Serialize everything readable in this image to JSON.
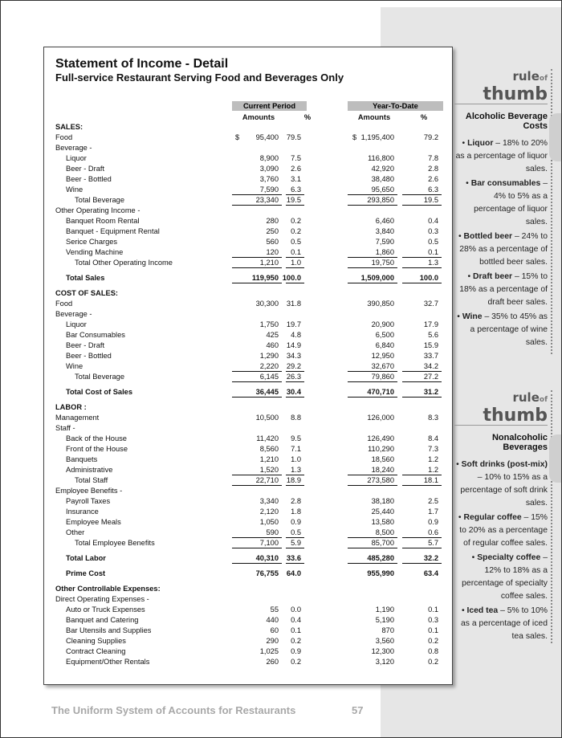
{
  "statement": {
    "title": "Statement of Income - Detail",
    "subtitle": "Full-service Restaurant Serving Food and Beverages Only",
    "groups": [
      "Current Period",
      "Year-To-Date"
    ],
    "columns": [
      "Amounts",
      "%",
      "Amounts",
      "%"
    ],
    "rows": [
      {
        "label": "SALES:"
      },
      {
        "label": "Food",
        "symbols": [
          "$",
          "$"
        ],
        "values": [
          "95,400",
          "79.5",
          "1,195,400",
          "79.2"
        ]
      },
      {
        "label": "Beverage -"
      },
      {
        "label": "Liquor",
        "values": [
          "8,900",
          "7.5",
          "116,800",
          "7.8"
        ]
      },
      {
        "label": "Beer - Draft",
        "values": [
          "3,090",
          "2.6",
          "42,920",
          "2.8"
        ]
      },
      {
        "label": "Beer - Bottled",
        "values": [
          "3,760",
          "3.1",
          "38,480",
          "2.6"
        ]
      },
      {
        "label": "Wine",
        "values": [
          "7,590",
          "6.3",
          "95,650",
          "6.3"
        ]
      },
      {
        "label": "Total Beverage",
        "values": [
          "23,340",
          "19.5",
          "293,850",
          "19.5"
        ]
      },
      {
        "label": "Other Operating Income -"
      },
      {
        "label": "Banquet Room Rental",
        "values": [
          "280",
          "0.2",
          "6,460",
          "0.4"
        ]
      },
      {
        "label": "Banquet - Equipment Rental",
        "values": [
          "250",
          "0.2",
          "3,840",
          "0.3"
        ]
      },
      {
        "label": "Serice Charges",
        "values": [
          "560",
          "0.5",
          "7,590",
          "0.5"
        ]
      },
      {
        "label": "Vending Machine",
        "values": [
          "120",
          "0.1",
          "1,860",
          "0.1"
        ]
      },
      {
        "label": "Total Other Operating Income",
        "values": [
          "1,210",
          "1.0",
          "19,750",
          "1.3"
        ]
      },
      {
        "label": "Total Sales",
        "values": [
          "119,950",
          "100.0",
          "1,509,000",
          "100.0"
        ]
      },
      {
        "label": "COST OF SALES:"
      },
      {
        "label": "Food",
        "values": [
          "30,300",
          "31.8",
          "390,850",
          "32.7"
        ]
      },
      {
        "label": "Beverage -"
      },
      {
        "label": "Liquor",
        "values": [
          "1,750",
          "19.7",
          "20,900",
          "17.9"
        ]
      },
      {
        "label": "Bar Consumables",
        "values": [
          "425",
          "4.8",
          "6,500",
          "5.6"
        ]
      },
      {
        "label": "Beer - Draft",
        "values": [
          "460",
          "14.9",
          "6,840",
          "15.9"
        ]
      },
      {
        "label": "Beer - Bottled",
        "values": [
          "1,290",
          "34.3",
          "12,950",
          "33.7"
        ]
      },
      {
        "label": "Wine",
        "values": [
          "2,220",
          "29.2",
          "32,670",
          "34.2"
        ]
      },
      {
        "label": "Total Beverage",
        "values": [
          "6,145",
          "26.3",
          "79,860",
          "27.2"
        ]
      },
      {
        "label": "Total Cost of Sales",
        "values": [
          "36,445",
          "30.4",
          "470,710",
          "31.2"
        ]
      },
      {
        "label": "LABOR :"
      },
      {
        "label": "Management",
        "values": [
          "10,500",
          "8.8",
          "126,000",
          "8.3"
        ]
      },
      {
        "label": "Staff -"
      },
      {
        "label": "Back of the House",
        "values": [
          "11,420",
          "9.5",
          "126,490",
          "8.4"
        ]
      },
      {
        "label": "Front of the House",
        "values": [
          "8,560",
          "7.1",
          "110,290",
          "7.3"
        ]
      },
      {
        "label": "Banquets",
        "values": [
          "1,210",
          "1.0",
          "18,560",
          "1.2"
        ]
      },
      {
        "label": "Administrative",
        "values": [
          "1,520",
          "1.3",
          "18,240",
          "1.2"
        ]
      },
      {
        "label": "Total Staff",
        "values": [
          "22,710",
          "18.9",
          "273,580",
          "18.1"
        ]
      },
      {
        "label": "Employee Benefits -"
      },
      {
        "label": "Payroll Taxes",
        "values": [
          "3,340",
          "2.8",
          "38,180",
          "2.5"
        ]
      },
      {
        "label": "Insurance",
        "values": [
          "2,120",
          "1.8",
          "25,440",
          "1.7"
        ]
      },
      {
        "label": "Employee Meals",
        "values": [
          "1,050",
          "0.9",
          "13,580",
          "0.9"
        ]
      },
      {
        "label": "Other",
        "values": [
          "590",
          "0.5",
          "8,500",
          "0.6"
        ]
      },
      {
        "label": "Total Employee Benefits",
        "values": [
          "7,100",
          "5.9",
          "85,700",
          "5.7"
        ]
      },
      {
        "label": "Total Labor",
        "values": [
          "40,310",
          "33.6",
          "485,280",
          "32.2"
        ]
      },
      {
        "label": "Prime Cost",
        "values": [
          "76,755",
          "64.0",
          "955,990",
          "63.4"
        ]
      },
      {
        "label": "Other Controllable Expenses:"
      },
      {
        "label": "Direct Operating Expenses -"
      },
      {
        "label": "Auto or Truck Expenses",
        "values": [
          "55",
          "0.0",
          "1,190",
          "0.1"
        ]
      },
      {
        "label": "Banquet and Catering",
        "values": [
          "440",
          "0.4",
          "5,190",
          "0.3"
        ]
      },
      {
        "label": "Bar Utensils and Supplies",
        "values": [
          "60",
          "0.1",
          "870",
          "0.1"
        ]
      },
      {
        "label": "Cleaning Supplies",
        "values": [
          "290",
          "0.2",
          "3,560",
          "0.2"
        ]
      },
      {
        "label": "Contract Cleaning",
        "values": [
          "1,025",
          "0.9",
          "12,300",
          "0.8"
        ]
      },
      {
        "label": "Equipment/Other Rentals",
        "values": [
          "260",
          "0.2",
          "3,120",
          "0.2"
        ]
      }
    ]
  },
  "sidebar": [
    {
      "rule": "rule",
      "of": "of",
      "thumb": "thumb",
      "title": "Alcoholic Beverage Costs",
      "items": [
        {
          "term": "Liquor",
          "text": "– 18% to 20% as a percentage of liquor sales."
        },
        {
          "term": "Bar consumables",
          "text": "– 4% to 5% as a percentage of liquor sales."
        },
        {
          "term": "Bottled beer",
          "text": "– 24% to 28% as a percentage of bottled beer sales."
        },
        {
          "term": "Draft beer",
          "text": "– 15% to 18% as a percentage of draft beer sales."
        },
        {
          "term": "Wine",
          "text": "– 35% to 45% as a percentage of wine sales."
        }
      ]
    },
    {
      "rule": "rule",
      "of": "of",
      "thumb": "thumb",
      "title": "Nonalcoholic Beverages",
      "items": [
        {
          "term": "Soft drinks (post-mix)",
          "text": "– 10% to 15% as a percentage of soft drink sales."
        },
        {
          "term": "Regular coffee",
          "text": "– 15% to 20% as a percentage of regular coffee sales."
        },
        {
          "term": "Specialty coffee",
          "text": "– 12% to 18% as a percentage of specialty coffee sales."
        },
        {
          "term": "Iced tea",
          "text": "– 5% to 10% as a percentage of iced tea sales."
        }
      ]
    }
  ],
  "footer": {
    "book": "The Uniform System of Accounts for Restaurants",
    "page": "57"
  }
}
